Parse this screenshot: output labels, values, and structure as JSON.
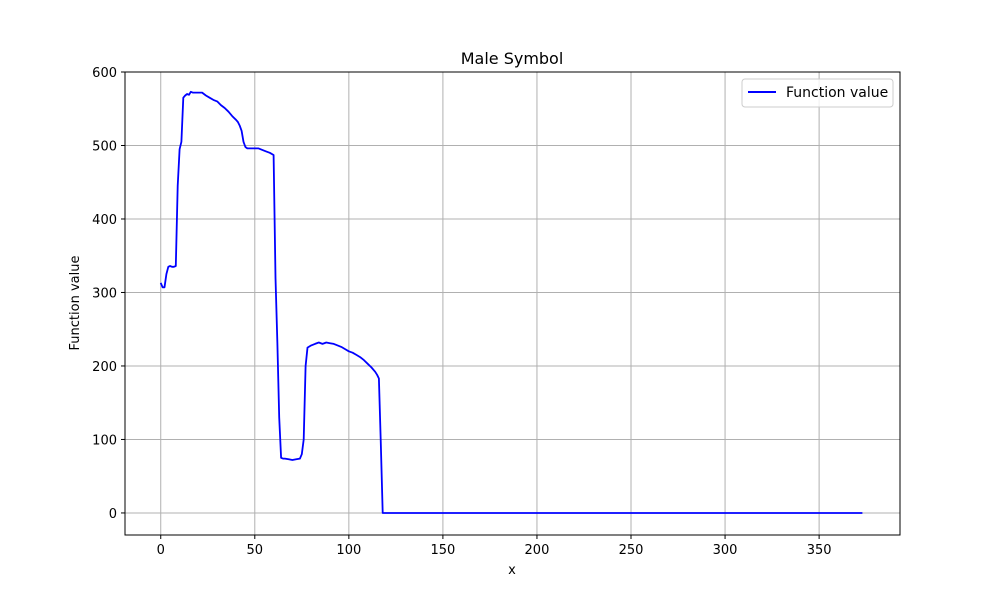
{
  "chart_data": {
    "type": "line",
    "title": "Male Symbol",
    "xlabel": "x",
    "ylabel": "Function value",
    "xlim": [
      -19,
      393
    ],
    "ylim": [
      -30,
      600
    ],
    "xticks": [
      0,
      50,
      100,
      150,
      200,
      250,
      300,
      350
    ],
    "yticks": [
      0,
      100,
      200,
      300,
      400,
      500,
      600
    ],
    "grid": true,
    "legend_position": "top-right",
    "line_color": "#0000ff",
    "series": [
      {
        "name": "Function value",
        "color": "#0000ff",
        "x": [
          0,
          1,
          2,
          3,
          4,
          5,
          6,
          7,
          8,
          9,
          10,
          11,
          12,
          13,
          14,
          15,
          16,
          17,
          18,
          20,
          22,
          24,
          26,
          28,
          30,
          32,
          34,
          36,
          38,
          40,
          41,
          42,
          43,
          44,
          45,
          46,
          47,
          48,
          50,
          52,
          54,
          56,
          58,
          60,
          61,
          62,
          63,
          64,
          65,
          66,
          68,
          70,
          72,
          74,
          75,
          76,
          77,
          78,
          80,
          82,
          84,
          86,
          88,
          90,
          92,
          94,
          96,
          98,
          100,
          102,
          104,
          106,
          108,
          110,
          112,
          114,
          115,
          116,
          117,
          118,
          119,
          120,
          150,
          200,
          250,
          300,
          350,
          373
        ],
        "values": [
          313,
          307,
          307,
          325,
          335,
          336,
          335,
          335,
          336,
          445,
          495,
          505,
          565,
          568,
          570,
          569,
          573,
          572,
          572,
          572,
          572,
          568,
          565,
          562,
          560,
          555,
          551,
          546,
          540,
          535,
          532,
          527,
          520,
          505,
          498,
          496,
          496,
          496,
          496,
          496,
          494,
          492,
          490,
          487,
          320,
          230,
          130,
          75,
          74,
          74,
          73,
          72,
          73,
          74,
          80,
          100,
          200,
          225,
          228,
          230,
          232,
          230,
          232,
          231,
          230,
          228,
          226,
          223,
          220,
          218,
          215,
          212,
          208,
          203,
          198,
          192,
          188,
          183,
          95,
          0,
          0,
          0,
          0,
          0,
          0,
          0,
          0,
          0
        ]
      }
    ]
  }
}
